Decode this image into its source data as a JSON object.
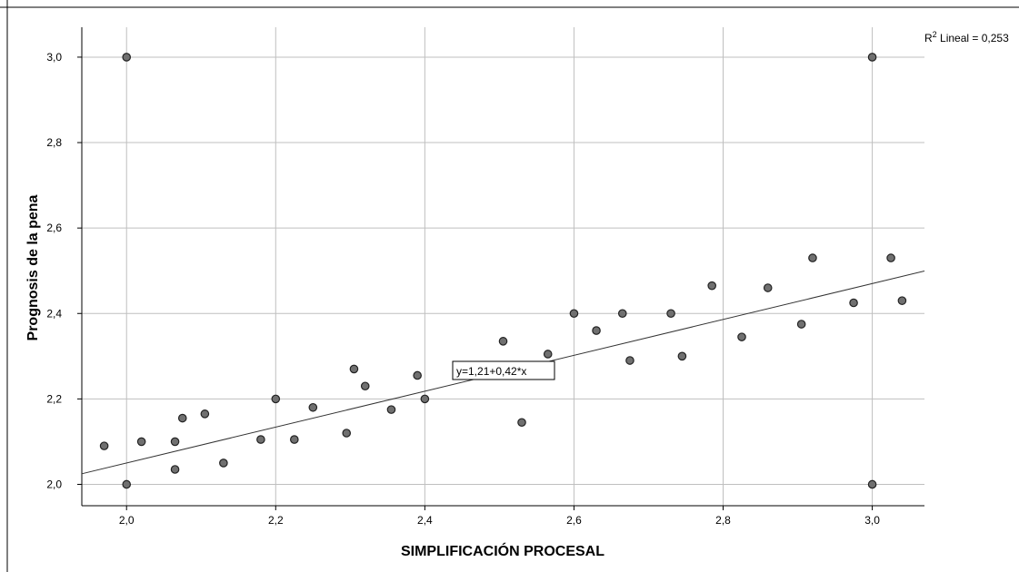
{
  "chart_data": {
    "type": "scatter",
    "xlabel": "SIMPLIFICACIÓN PROCESAL",
    "ylabel": "Prognosis de la pena",
    "xlim": [
      1.94,
      3.07
    ],
    "ylim": [
      1.95,
      3.07
    ],
    "x_ticks": [
      2.0,
      2.2,
      2.4,
      2.6,
      2.8,
      3.0
    ],
    "x_tick_labels": [
      "2,0",
      "2,2",
      "2,4",
      "2,6",
      "2,8",
      "3,0"
    ],
    "y_ticks": [
      2.0,
      2.2,
      2.4,
      2.6,
      2.8,
      3.0
    ],
    "y_tick_labels": [
      "2,0",
      "2,2",
      "2,4",
      "2,6",
      "2,8",
      "3,0"
    ],
    "grid": true,
    "points": [
      [
        1.97,
        2.09
      ],
      [
        2.0,
        3.0
      ],
      [
        2.0,
        2.0
      ],
      [
        2.02,
        2.1
      ],
      [
        2.065,
        2.1
      ],
      [
        2.065,
        2.035
      ],
      [
        2.075,
        2.155
      ],
      [
        2.105,
        2.165
      ],
      [
        2.13,
        2.05
      ],
      [
        2.18,
        2.105
      ],
      [
        2.2,
        2.2
      ],
      [
        2.225,
        2.105
      ],
      [
        2.25,
        2.18
      ],
      [
        2.295,
        2.12
      ],
      [
        2.305,
        2.27
      ],
      [
        2.32,
        2.23
      ],
      [
        2.355,
        2.175
      ],
      [
        2.39,
        2.255
      ],
      [
        2.4,
        2.2
      ],
      [
        2.505,
        2.335
      ],
      [
        2.53,
        2.145
      ],
      [
        2.565,
        2.305
      ],
      [
        2.6,
        2.4
      ],
      [
        2.63,
        2.36
      ],
      [
        2.665,
        2.4
      ],
      [
        2.675,
        2.29
      ],
      [
        2.73,
        2.4
      ],
      [
        2.745,
        2.3
      ],
      [
        2.785,
        2.465
      ],
      [
        2.825,
        2.345
      ],
      [
        2.86,
        2.46
      ],
      [
        2.905,
        2.375
      ],
      [
        2.92,
        2.53
      ],
      [
        2.975,
        2.425
      ],
      [
        3.0,
        3.0
      ],
      [
        3.0,
        2.0
      ],
      [
        3.025,
        2.53
      ],
      [
        3.04,
        2.43
      ]
    ],
    "fit_line": {
      "intercept": 1.21,
      "slope": 0.42
    },
    "fit_label": "y=1,21+0,42*x",
    "r2_text": {
      "prefix": "R",
      "sup": "2",
      "rest": " Lineal = 0,253"
    },
    "colors": {
      "point_fill": "#707070",
      "point_stroke": "#222222",
      "grid": "#bfbfbf",
      "axis": "#000000",
      "line": "#333333"
    }
  }
}
